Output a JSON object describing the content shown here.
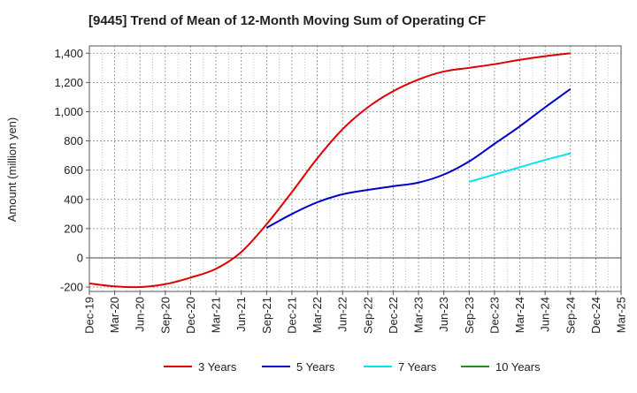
{
  "chart_data": {
    "type": "line",
    "title": "[9445]  Trend of Mean of 12-Month Moving Sum of Operating CF",
    "xlabel": "",
    "ylabel": "Amount (million yen)",
    "ylim": [
      -230,
      1450
    ],
    "yticks": [
      -200,
      0,
      200,
      400,
      600,
      800,
      1000,
      1200,
      1400
    ],
    "ytick_labels": [
      "-200",
      "0",
      "200",
      "400",
      "600",
      "800",
      "1,000",
      "1,200",
      "1,400"
    ],
    "x_categories": [
      "Dec-19",
      "Mar-20",
      "Jun-20",
      "Sep-20",
      "Dec-20",
      "Mar-21",
      "Jun-21",
      "Sep-21",
      "Dec-21",
      "Mar-22",
      "Jun-22",
      "Sep-22",
      "Dec-22",
      "Mar-23",
      "Jun-23",
      "Sep-23",
      "Dec-23",
      "Mar-24",
      "Jun-24",
      "Sep-24",
      "Dec-24",
      "Mar-25"
    ],
    "grid": true,
    "legend_position": "bottom",
    "series": [
      {
        "name": "3 Years",
        "color": "#e00000",
        "values": [
          -175,
          -195,
          -200,
          -180,
          -135,
          -75,
          40,
          230,
          450,
          680,
          880,
          1030,
          1140,
          1220,
          1275,
          1300,
          1325,
          1355,
          1380,
          1400,
          null,
          null
        ]
      },
      {
        "name": "5 Years",
        "color": "#0000cc",
        "values": [
          null,
          null,
          null,
          null,
          null,
          null,
          null,
          205,
          300,
          380,
          435,
          465,
          490,
          515,
          570,
          660,
          780,
          900,
          1030,
          1155,
          null,
          null
        ]
      },
      {
        "name": "7 Years",
        "color": "#00e5ee",
        "values": [
          null,
          null,
          null,
          null,
          null,
          null,
          null,
          null,
          null,
          null,
          null,
          null,
          null,
          null,
          null,
          520,
          570,
          620,
          670,
          715,
          null,
          null
        ]
      },
      {
        "name": "10 Years",
        "color": "#228b22",
        "values": [
          null,
          null,
          null,
          null,
          null,
          null,
          null,
          null,
          null,
          null,
          null,
          null,
          null,
          null,
          null,
          null,
          null,
          null,
          null,
          null,
          null,
          null
        ]
      }
    ]
  }
}
